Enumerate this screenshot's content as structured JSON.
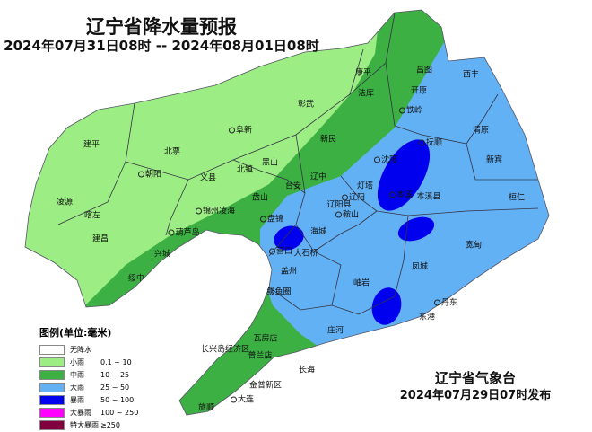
{
  "header": {
    "title": "辽宁省降水量预报",
    "period": "2024年07月31日08时 -- 2024年08月01日08时"
  },
  "legend": {
    "title": "图例(单位:毫米)",
    "items": [
      {
        "label": "无降水",
        "range": "",
        "color": "#ffffff"
      },
      {
        "label": "小雨",
        "range": "0.1 ~ 10",
        "color": "#9cee84"
      },
      {
        "label": "中雨",
        "range": "10 ~ 25",
        "color": "#3cb043"
      },
      {
        "label": "大雨",
        "range": "25 ~ 50",
        "color": "#63b1f5"
      },
      {
        "label": "暴雨",
        "range": "50 ~ 100",
        "color": "#0000ee"
      },
      {
        "label": "大暴雨",
        "range": "100 ~ 250",
        "color": "#ff00ff"
      },
      {
        "label": "特大暴雨",
        "range": "≥250",
        "color": "#800040"
      }
    ]
  },
  "cities": [
    "康平",
    "昌图",
    "法库",
    "开原",
    "彰武",
    "铁岭",
    "阜新",
    "新民",
    "沈阳",
    "抚顺",
    "黑山",
    "北镇",
    "义县",
    "辽中",
    "灯塔",
    "台安",
    "辽阳",
    "本溪",
    "本溪县",
    "盘山",
    "辽阳县",
    "锦州凌海",
    "鞍山",
    "盘锦",
    "海城",
    "葫芦岛",
    "建平",
    "北票",
    "朝阳",
    "凌源",
    "喀左",
    "建昌",
    "兴城",
    "绥中",
    "西丰",
    "清原",
    "新宾",
    "桓仁",
    "宽甸",
    "凤城",
    "丹东",
    "东港",
    "营口",
    "大石桥",
    "盖州",
    "岫岩",
    "鲅鱼圈",
    "庄河",
    "瓦房店",
    "长兴岛经济区",
    "普兰店",
    "长海",
    "金普新区",
    "大连",
    "旅顺"
  ],
  "issuer": {
    "name": "辽宁省气象台",
    "issued": "2024年07月29日07时发布"
  }
}
